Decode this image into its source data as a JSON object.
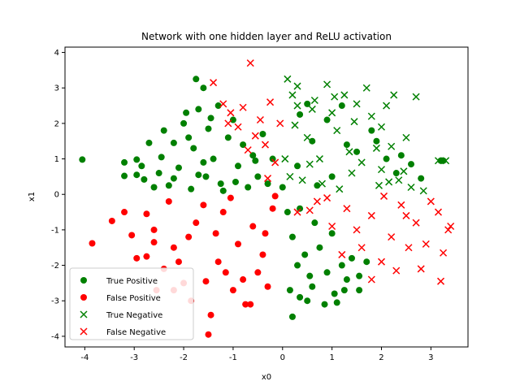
{
  "chart_data": {
    "type": "scatter",
    "title": "Network with one hidden layer and ReLU activation",
    "xlabel": "x0",
    "ylabel": "x1",
    "xlim": [
      -4.4,
      3.75
    ],
    "ylim": [
      -4.3,
      4.15
    ],
    "xticks": [
      -4,
      -3,
      -2,
      -1,
      0,
      1,
      2,
      3
    ],
    "yticks": [
      -4,
      -3,
      -2,
      -1,
      0,
      1,
      2,
      3,
      4
    ],
    "grid": false,
    "legend_position": "lower left",
    "series": [
      {
        "name": "True Positive",
        "marker": "circle",
        "color": "#008000",
        "points": [
          [
            -4.05,
            0.98
          ],
          [
            -3.2,
            0.9
          ],
          [
            -3.2,
            0.52
          ],
          [
            -2.95,
            0.98
          ],
          [
            -2.8,
            0.42
          ],
          [
            -2.95,
            0.55
          ],
          [
            -2.85,
            0.8
          ],
          [
            -2.7,
            1.45
          ],
          [
            -2.6,
            0.2
          ],
          [
            -2.5,
            0.6
          ],
          [
            -2.45,
            1.05
          ],
          [
            -2.3,
            0.25
          ],
          [
            -2.2,
            1.45
          ],
          [
            -2.1,
            0.75
          ],
          [
            -2.0,
            2.0
          ],
          [
            -1.95,
            2.3
          ],
          [
            -1.85,
            0.15
          ],
          [
            -1.8,
            1.3
          ],
          [
            -1.75,
            3.25
          ],
          [
            -1.7,
            2.4
          ],
          [
            -1.6,
            3.0
          ],
          [
            -1.55,
            0.5
          ],
          [
            -1.5,
            1.85
          ],
          [
            -1.4,
            1.0
          ],
          [
            -1.3,
            2.5
          ],
          [
            -1.25,
            0.3
          ],
          [
            -1.1,
            1.6
          ],
          [
            -1.0,
            2.1
          ],
          [
            -0.9,
            0.8
          ],
          [
            -0.8,
            1.4
          ],
          [
            -0.7,
            0.2
          ],
          [
            -0.6,
            1.1
          ],
          [
            -0.5,
            0.5
          ],
          [
            -0.4,
            1.7
          ],
          [
            -0.3,
            0.3
          ],
          [
            -0.2,
            1.0
          ],
          [
            -2.4,
            1.8
          ],
          [
            -1.9,
            1.6
          ],
          [
            -1.6,
            0.9
          ],
          [
            -1.2,
            0.1
          ],
          [
            -2.2,
            0.45
          ],
          [
            -1.45,
            2.15
          ],
          [
            -0.95,
            0.35
          ],
          [
            -0.55,
            0.95
          ],
          [
            -1.7,
            0.55
          ],
          [
            0.1,
            -0.5
          ],
          [
            0.2,
            -1.2
          ],
          [
            0.3,
            -2.0
          ],
          [
            0.35,
            -2.9
          ],
          [
            0.5,
            -3.0
          ],
          [
            0.6,
            -2.6
          ],
          [
            0.75,
            -1.5
          ],
          [
            0.85,
            -3.1
          ],
          [
            0.9,
            -2.2
          ],
          [
            1.0,
            -1.1
          ],
          [
            1.05,
            -2.8
          ],
          [
            1.2,
            -2.0
          ],
          [
            1.3,
            -2.4
          ],
          [
            1.4,
            -1.8
          ],
          [
            1.55,
            -2.3
          ],
          [
            1.7,
            -1.9
          ],
          [
            0.15,
            -2.7
          ],
          [
            0.2,
            -3.45
          ],
          [
            0.45,
            -1.7
          ],
          [
            0.65,
            -0.8
          ],
          [
            1.1,
            -3.05
          ],
          [
            0.55,
            -2.3
          ],
          [
            1.25,
            -2.7
          ],
          [
            1.55,
            -2.7
          ],
          [
            0.35,
            -0.4
          ],
          [
            0.0,
            0.2
          ],
          [
            0.3,
            0.8
          ],
          [
            0.6,
            1.5
          ],
          [
            0.9,
            2.1
          ],
          [
            1.2,
            2.5
          ],
          [
            1.5,
            1.2
          ],
          [
            1.8,
            1.8
          ],
          [
            2.1,
            1.0
          ],
          [
            2.3,
            0.6
          ],
          [
            2.6,
            0.85
          ],
          [
            2.8,
            0.45
          ],
          [
            3.2,
            0.95
          ],
          [
            3.25,
            0.95
          ],
          [
            0.5,
            2.55
          ],
          [
            1.0,
            0.5
          ],
          [
            1.9,
            1.5
          ],
          [
            2.4,
            1.1
          ],
          [
            0.7,
            0.25
          ],
          [
            1.3,
            1.4
          ],
          [
            0.35,
            2.25
          ]
        ]
      },
      {
        "name": "False Positive",
        "marker": "circle",
        "color": "#ff0000",
        "points": [
          [
            -3.85,
            -1.38
          ],
          [
            -3.45,
            -0.75
          ],
          [
            -3.2,
            -0.5
          ],
          [
            -3.05,
            -1.15
          ],
          [
            -2.95,
            -1.8
          ],
          [
            -2.75,
            -1.75
          ],
          [
            -2.6,
            -1.0
          ],
          [
            -2.55,
            -2.7
          ],
          [
            -2.4,
            -2.1
          ],
          [
            -2.2,
            -2.7
          ],
          [
            -2.2,
            -1.5
          ],
          [
            -2.0,
            -2.5
          ],
          [
            -1.85,
            -3.0
          ],
          [
            -1.75,
            -0.8
          ],
          [
            -1.55,
            -2.45
          ],
          [
            -1.45,
            -3.4
          ],
          [
            -1.3,
            -1.9
          ],
          [
            -1.2,
            -0.5
          ],
          [
            -1.0,
            -2.7
          ],
          [
            -0.9,
            -1.4
          ],
          [
            -0.75,
            -3.1
          ],
          [
            -0.6,
            -0.9
          ],
          [
            -0.5,
            -2.2
          ],
          [
            -0.4,
            -1.7
          ],
          [
            -0.3,
            -2.6
          ],
          [
            -0.2,
            -0.4
          ],
          [
            -2.75,
            -0.55
          ],
          [
            -2.3,
            -0.2
          ],
          [
            -1.9,
            -1.2
          ],
          [
            -1.6,
            -0.3
          ],
          [
            -1.5,
            -3.95
          ],
          [
            -1.15,
            -2.2
          ],
          [
            -0.8,
            -2.4
          ],
          [
            -0.65,
            -3.1
          ],
          [
            -2.6,
            -1.35
          ],
          [
            -1.35,
            -1.1
          ],
          [
            -0.35,
            -1.1
          ],
          [
            -2.1,
            -1.9
          ],
          [
            -0.15,
            -0.05
          ],
          [
            -1.05,
            -0.1
          ]
        ]
      },
      {
        "name": "True Negative",
        "marker": "x",
        "color": "#008000",
        "points": [
          [
            0.05,
            1.0
          ],
          [
            0.1,
            3.25
          ],
          [
            0.2,
            2.8
          ],
          [
            0.3,
            2.5
          ],
          [
            0.5,
            1.6
          ],
          [
            0.6,
            2.4
          ],
          [
            0.75,
            1.0
          ],
          [
            0.9,
            3.1
          ],
          [
            1.0,
            2.3
          ],
          [
            1.1,
            1.8
          ],
          [
            1.25,
            2.8
          ],
          [
            1.35,
            1.2
          ],
          [
            1.5,
            2.55
          ],
          [
            1.6,
            0.9
          ],
          [
            1.7,
            3.0
          ],
          [
            1.8,
            2.2
          ],
          [
            1.9,
            1.3
          ],
          [
            2.0,
            0.7
          ],
          [
            2.1,
            2.5
          ],
          [
            2.25,
            2.8
          ],
          [
            2.35,
            0.4
          ],
          [
            2.5,
            1.6
          ],
          [
            2.6,
            0.2
          ],
          [
            2.7,
            2.75
          ],
          [
            2.85,
            0.1
          ],
          [
            3.15,
            0.95
          ],
          [
            3.3,
            0.95
          ],
          [
            0.4,
            0.4
          ],
          [
            0.8,
            0.3
          ],
          [
            1.4,
            0.6
          ],
          [
            2.0,
            1.9
          ],
          [
            0.25,
            1.95
          ],
          [
            0.55,
            0.85
          ],
          [
            1.15,
            0.15
          ],
          [
            1.95,
            0.25
          ],
          [
            0.65,
            2.65
          ],
          [
            1.45,
            2.05
          ],
          [
            2.2,
            1.35
          ],
          [
            2.45,
            0.65
          ],
          [
            0.15,
            0.5
          ],
          [
            1.05,
            2.75
          ],
          [
            2.15,
            0.35
          ],
          [
            0.3,
            3.05
          ]
        ]
      },
      {
        "name": "False Negative",
        "marker": "x",
        "color": "#ff0000",
        "points": [
          [
            -1.4,
            3.15
          ],
          [
            -1.2,
            2.55
          ],
          [
            -1.05,
            2.3
          ],
          [
            -0.9,
            1.9
          ],
          [
            -0.8,
            2.45
          ],
          [
            -0.65,
            3.7
          ],
          [
            -0.55,
            1.65
          ],
          [
            -0.45,
            2.1
          ],
          [
            -0.35,
            1.4
          ],
          [
            -0.25,
            2.6
          ],
          [
            -0.15,
            0.9
          ],
          [
            -0.05,
            2.0
          ],
          [
            -1.1,
            2.0
          ],
          [
            -0.7,
            1.25
          ],
          [
            -0.3,
            0.45
          ],
          [
            0.3,
            -0.5
          ],
          [
            0.7,
            -0.2
          ],
          [
            1.0,
            -0.9
          ],
          [
            1.3,
            -0.4
          ],
          [
            1.6,
            -1.5
          ],
          [
            1.8,
            -0.6
          ],
          [
            2.0,
            -1.9
          ],
          [
            2.2,
            -1.2
          ],
          [
            2.4,
            -0.3
          ],
          [
            2.55,
            -1.5
          ],
          [
            2.7,
            -0.8
          ],
          [
            2.8,
            -2.1
          ],
          [
            3.0,
            -0.2
          ],
          [
            3.15,
            -0.5
          ],
          [
            3.2,
            -2.45
          ],
          [
            3.25,
            -1.65
          ],
          [
            3.35,
            -1.0
          ],
          [
            3.4,
            -0.9
          ],
          [
            2.3,
            -2.15
          ],
          [
            1.8,
            -2.4
          ],
          [
            1.2,
            -1.7
          ],
          [
            0.55,
            -0.45
          ],
          [
            0.9,
            -0.1
          ],
          [
            1.5,
            -1.0
          ],
          [
            2.05,
            -0.05
          ],
          [
            2.9,
            -1.4
          ],
          [
            2.5,
            -0.6
          ]
        ]
      }
    ]
  }
}
